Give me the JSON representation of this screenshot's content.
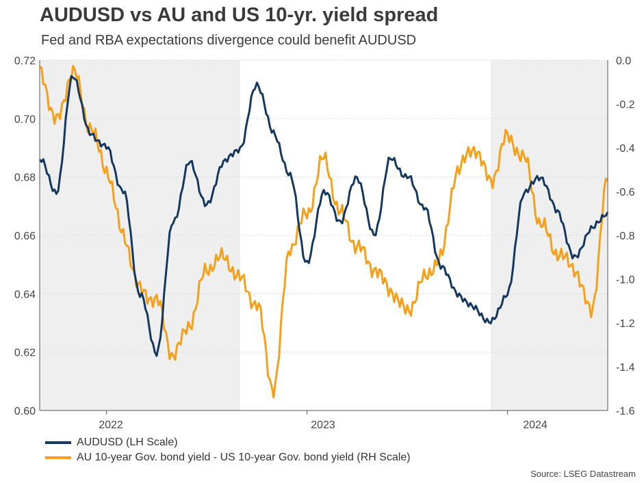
{
  "chart_data": {
    "type": "line",
    "title": "AUDUSD vs AU and US 10-yr. yield spread",
    "subtitle": "Fed and RBA expectations divergence could benefit AUDUSD",
    "x_axis": {
      "labels": [
        "2022",
        "2023",
        "2024"
      ]
    },
    "y_left": {
      "min": 0.6,
      "max": 0.72,
      "ticks": [
        "0.60",
        "0.62",
        "0.64",
        "0.66",
        "0.68",
        "0.70",
        "0.72"
      ]
    },
    "y_right": {
      "min": -1.6,
      "max": 0.0,
      "ticks": [
        "-1.6",
        "-1.4",
        "-1.2",
        "-1.0",
        "-0.8",
        "-0.6",
        "-0.4",
        "-0.2",
        "0.0"
      ]
    },
    "shaded_periods": [
      [
        "2021-09",
        "2022-09"
      ],
      [
        "2023-12",
        "2024-07"
      ]
    ],
    "time_domain": {
      "start": "2021-09",
      "end": "2024-07"
    },
    "series": [
      {
        "name": "AUDUSD (LH Scale)",
        "axis": "left",
        "color": "#14375f",
        "points": [
          [
            "2021-09",
            0.686
          ],
          [
            "2021-10",
            0.675
          ],
          [
            "2021-11",
            0.715
          ],
          [
            "2021-12",
            0.695
          ],
          [
            "2022-01",
            0.69
          ],
          [
            "2022-02",
            0.675
          ],
          [
            "2022-03",
            0.64
          ],
          [
            "2022-04",
            0.62
          ],
          [
            "2022-05",
            0.665
          ],
          [
            "2022-06",
            0.685
          ],
          [
            "2022-07",
            0.67
          ],
          [
            "2022-08",
            0.685
          ],
          [
            "2022-09",
            0.69
          ],
          [
            "2022-10",
            0.712
          ],
          [
            "2022-11",
            0.695
          ],
          [
            "2022-12",
            0.68
          ],
          [
            "2023-01",
            0.65
          ],
          [
            "2023-02",
            0.675
          ],
          [
            "2023-03",
            0.665
          ],
          [
            "2023-04",
            0.68
          ],
          [
            "2023-05",
            0.66
          ],
          [
            "2023-06",
            0.686
          ],
          [
            "2023-07",
            0.68
          ],
          [
            "2023-08",
            0.67
          ],
          [
            "2023-09",
            0.65
          ],
          [
            "2023-10",
            0.64
          ],
          [
            "2023-11",
            0.635
          ],
          [
            "2023-12",
            0.63
          ],
          [
            "2024-01",
            0.64
          ],
          [
            "2024-02",
            0.675
          ],
          [
            "2024-03",
            0.68
          ],
          [
            "2024-04",
            0.668
          ],
          [
            "2024-05",
            0.652
          ],
          [
            "2024-06",
            0.662
          ],
          [
            "2024-07",
            0.668
          ]
        ]
      },
      {
        "name": "AU 10-year Gov. bond yield - US 10-year Gov. bond yield (RH Scale)",
        "axis": "right",
        "color": "#f5a01a",
        "points": [
          [
            "2021-09",
            -0.05
          ],
          [
            "2021-10",
            -0.28
          ],
          [
            "2021-11",
            -0.05
          ],
          [
            "2021-12",
            -0.3
          ],
          [
            "2022-01",
            -0.5
          ],
          [
            "2022-02",
            -0.8
          ],
          [
            "2022-03",
            -1.05
          ],
          [
            "2022-04",
            -1.1
          ],
          [
            "2022-05",
            -1.35
          ],
          [
            "2022-06",
            -1.2
          ],
          [
            "2022-07",
            -0.95
          ],
          [
            "2022-08",
            -0.9
          ],
          [
            "2022-09",
            -1.0
          ],
          [
            "2022-10",
            -1.12
          ],
          [
            "2022-11",
            -1.5
          ],
          [
            "2022-12",
            -0.85
          ],
          [
            "2023-01",
            -0.7
          ],
          [
            "2023-02",
            -0.45
          ],
          [
            "2023-03",
            -0.7
          ],
          [
            "2023-04",
            -0.85
          ],
          [
            "2023-05",
            -0.95
          ],
          [
            "2023-06",
            -1.05
          ],
          [
            "2023-07",
            -1.15
          ],
          [
            "2023-08",
            -1.0
          ],
          [
            "2023-09",
            -0.9
          ],
          [
            "2023-10",
            -0.5
          ],
          [
            "2023-11",
            -0.4
          ],
          [
            "2023-12",
            -0.55
          ],
          [
            "2024-01",
            -0.35
          ],
          [
            "2024-02",
            -0.45
          ],
          [
            "2024-03",
            -0.75
          ],
          [
            "2024-04",
            -0.88
          ],
          [
            "2024-05",
            -0.95
          ],
          [
            "2024-06",
            -1.15
          ],
          [
            "2024-07",
            -0.55
          ]
        ]
      }
    ]
  },
  "legend": {
    "items": [
      {
        "label": "AUDUSD (LH Scale)",
        "color": "#14375f"
      },
      {
        "label": "AU 10-year Gov. bond yield - US 10-year Gov. bond yield (RH Scale)",
        "color": "#f5a01a"
      }
    ]
  },
  "source": "Source: LSEG Datastream"
}
